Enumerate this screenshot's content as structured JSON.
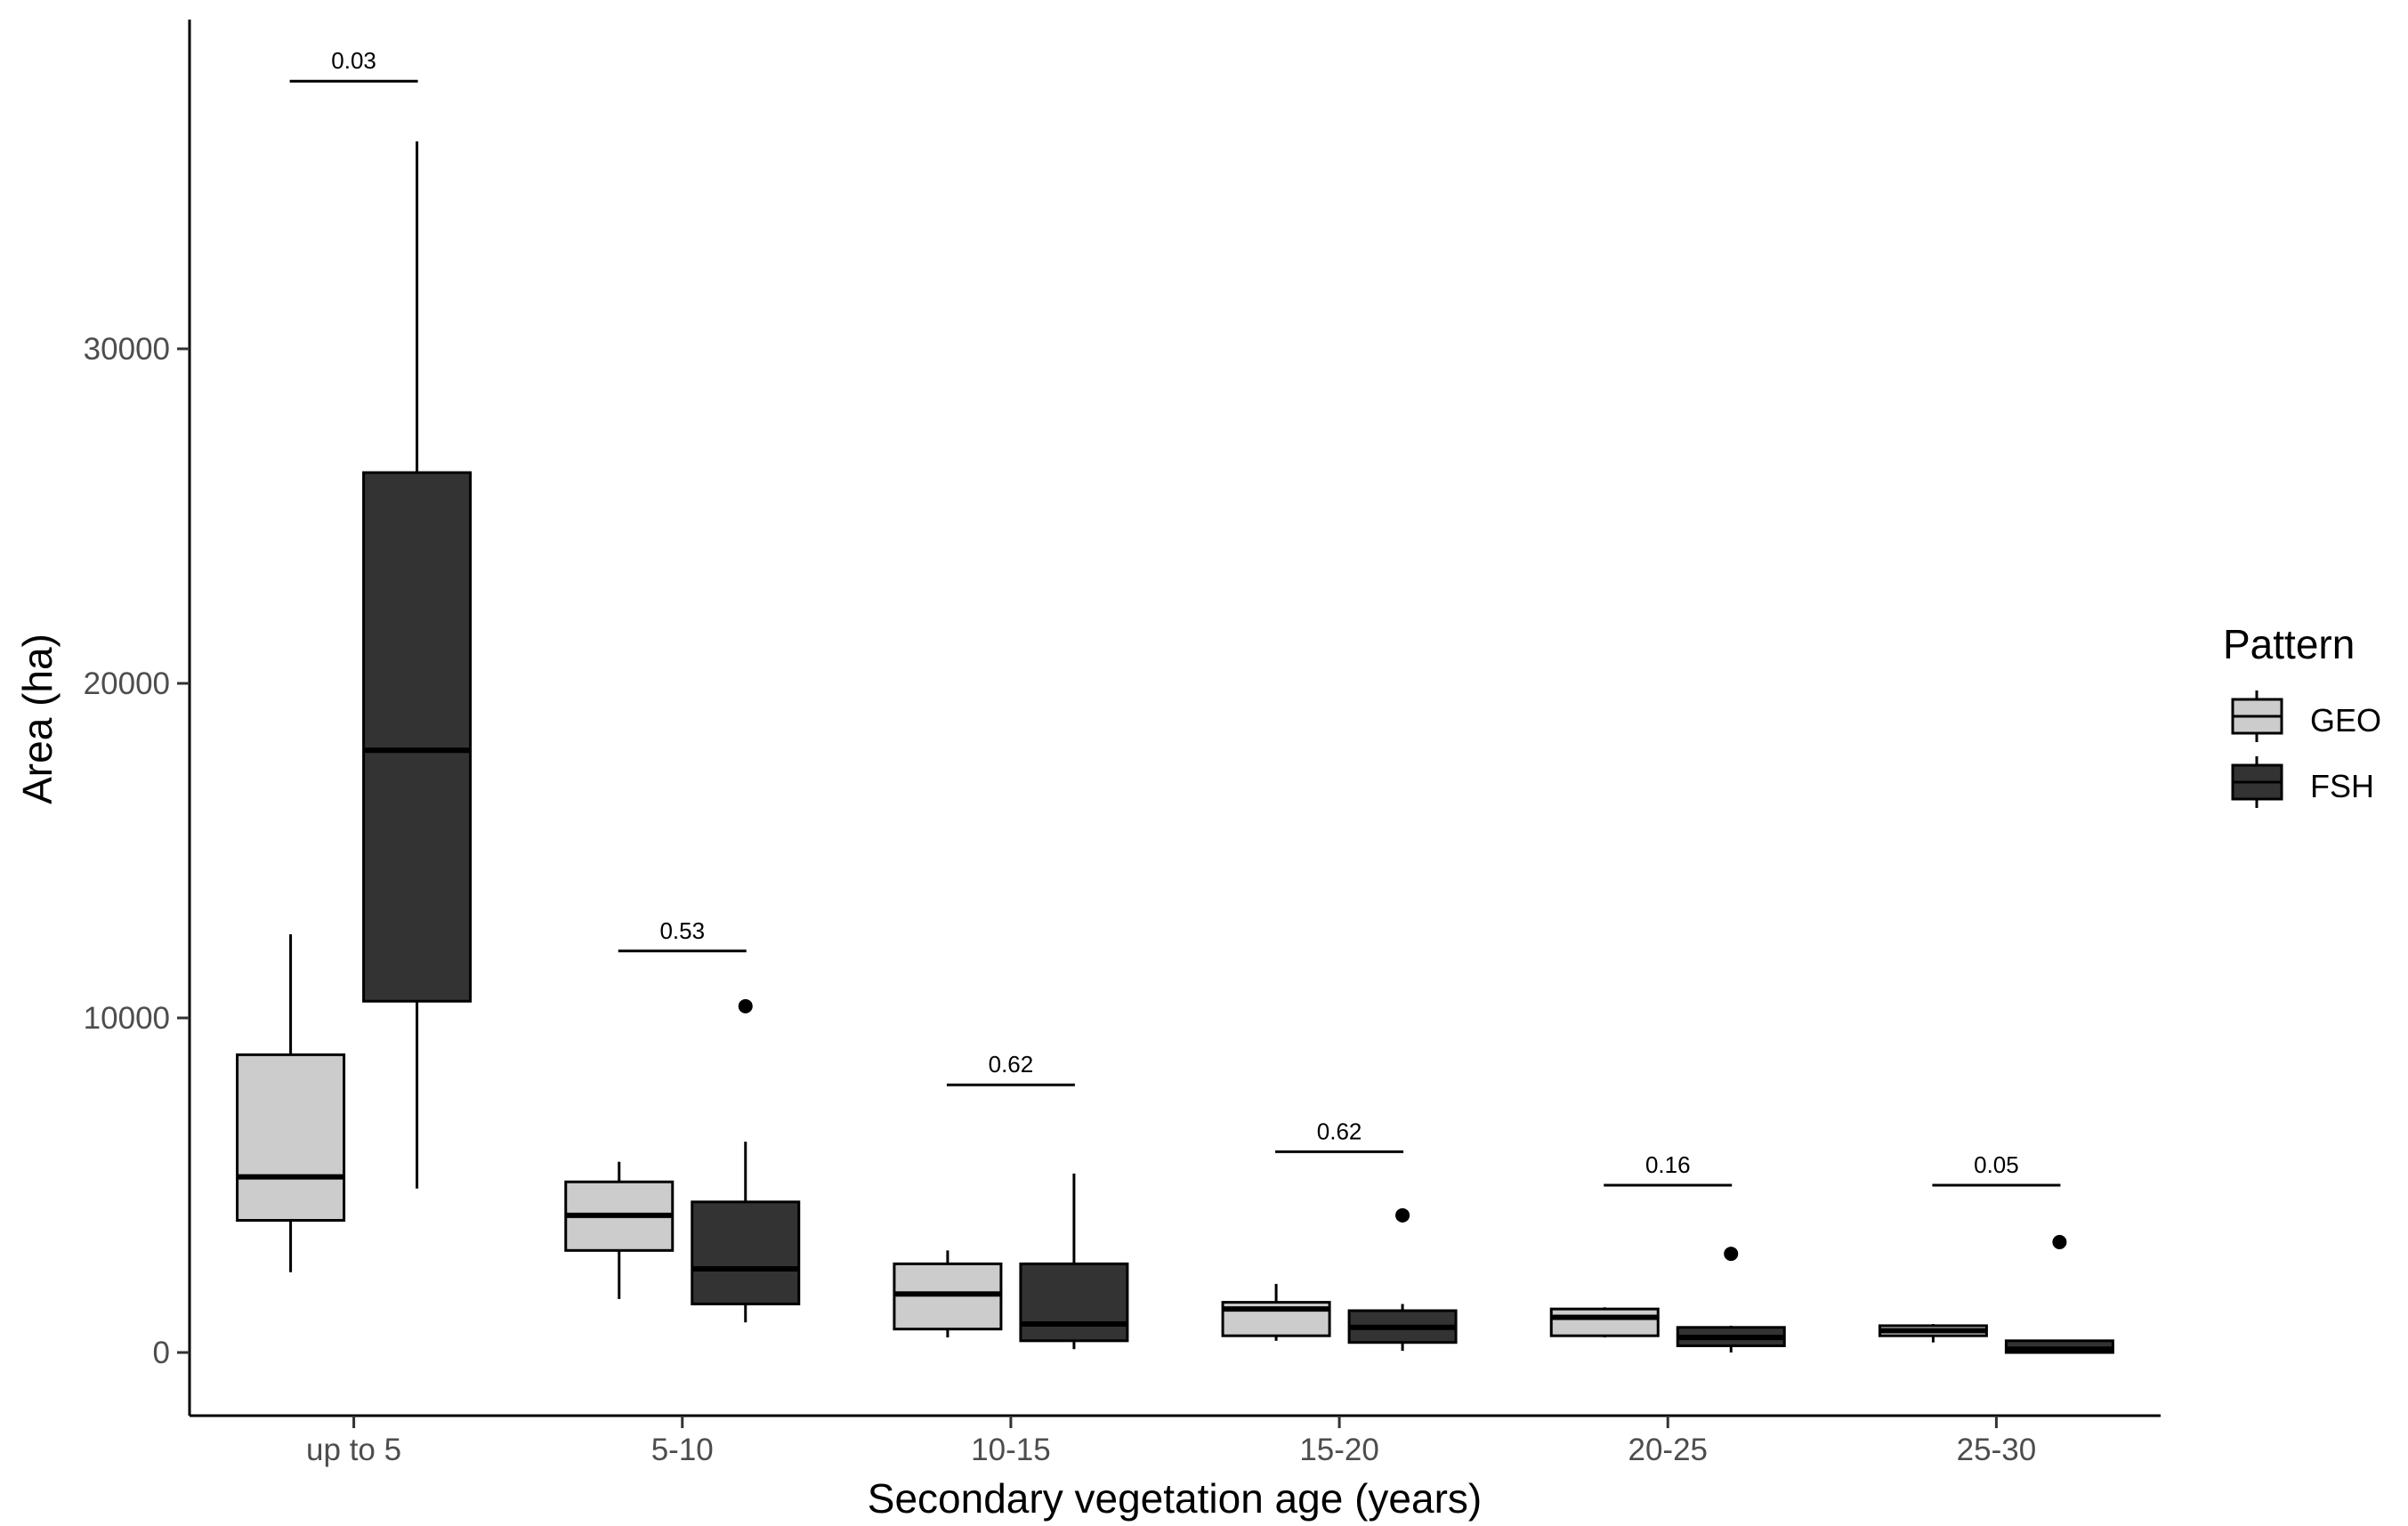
{
  "chart_data": {
    "type": "boxplot",
    "xlabel": "Secondary vegetation age (years)",
    "ylabel": "Area (ha)",
    "ylim": [
      -1900,
      40000
    ],
    "yticks": [
      0,
      10000,
      20000,
      30000
    ],
    "grid": false,
    "legend": {
      "title": "Pattern",
      "placement": "right"
    },
    "categories": [
      "up to 5",
      "5-10",
      "10-15",
      "15-20",
      "20-25",
      "25-30"
    ],
    "series": [
      {
        "name": "GEO",
        "color": "#cccccc",
        "boxes": [
          {
            "min": 2400,
            "q1": 3950,
            "median": 5250,
            "q3": 8900,
            "max": 12500,
            "outliers": []
          },
          {
            "min": 1600,
            "q1": 3050,
            "median": 4100,
            "q3": 5100,
            "max": 5700,
            "outliers": []
          },
          {
            "min": 450,
            "q1": 700,
            "median": 1750,
            "q3": 2650,
            "max": 3050,
            "outliers": []
          },
          {
            "min": 350,
            "q1": 500,
            "median": 1300,
            "q3": 1500,
            "max": 2050,
            "outliers": []
          },
          {
            "min": 450,
            "q1": 500,
            "median": 1050,
            "q3": 1300,
            "max": 1350,
            "outliers": []
          },
          {
            "min": 300,
            "q1": 500,
            "median": 650,
            "q3": 800,
            "max": 850,
            "outliers": []
          }
        ]
      },
      {
        "name": "FSH",
        "color": "#333333",
        "boxes": [
          {
            "min": 4900,
            "q1": 10500,
            "median": 18000,
            "q3": 26300,
            "max": 36200,
            "outliers": []
          },
          {
            "min": 900,
            "q1": 1450,
            "median": 2500,
            "q3": 4500,
            "max": 6300,
            "outliers": [
              10350
            ]
          },
          {
            "min": 100,
            "q1": 350,
            "median": 850,
            "q3": 2650,
            "max": 5350,
            "outliers": []
          },
          {
            "min": 50,
            "q1": 300,
            "median": 750,
            "q3": 1250,
            "max": 1450,
            "outliers": [
              4100
            ]
          },
          {
            "min": 0,
            "q1": 200,
            "median": 450,
            "q3": 750,
            "max": 800,
            "outliers": [
              2950
            ]
          },
          {
            "min": 0,
            "q1": 0,
            "median": 100,
            "q3": 350,
            "max": 350,
            "outliers": [
              3300
            ]
          }
        ]
      }
    ],
    "annotations": [
      {
        "category": "up to 5",
        "label": "0.03",
        "y": 38000
      },
      {
        "category": "5-10",
        "label": "0.53",
        "y": 12000
      },
      {
        "category": "10-15",
        "label": "0.62",
        "y": 8000
      },
      {
        "category": "15-20",
        "label": "0.62",
        "y": 6000
      },
      {
        "category": "20-25",
        "label": "0.16",
        "y": 5000
      },
      {
        "category": "25-30",
        "label": "0.05",
        "y": 5000
      }
    ]
  }
}
